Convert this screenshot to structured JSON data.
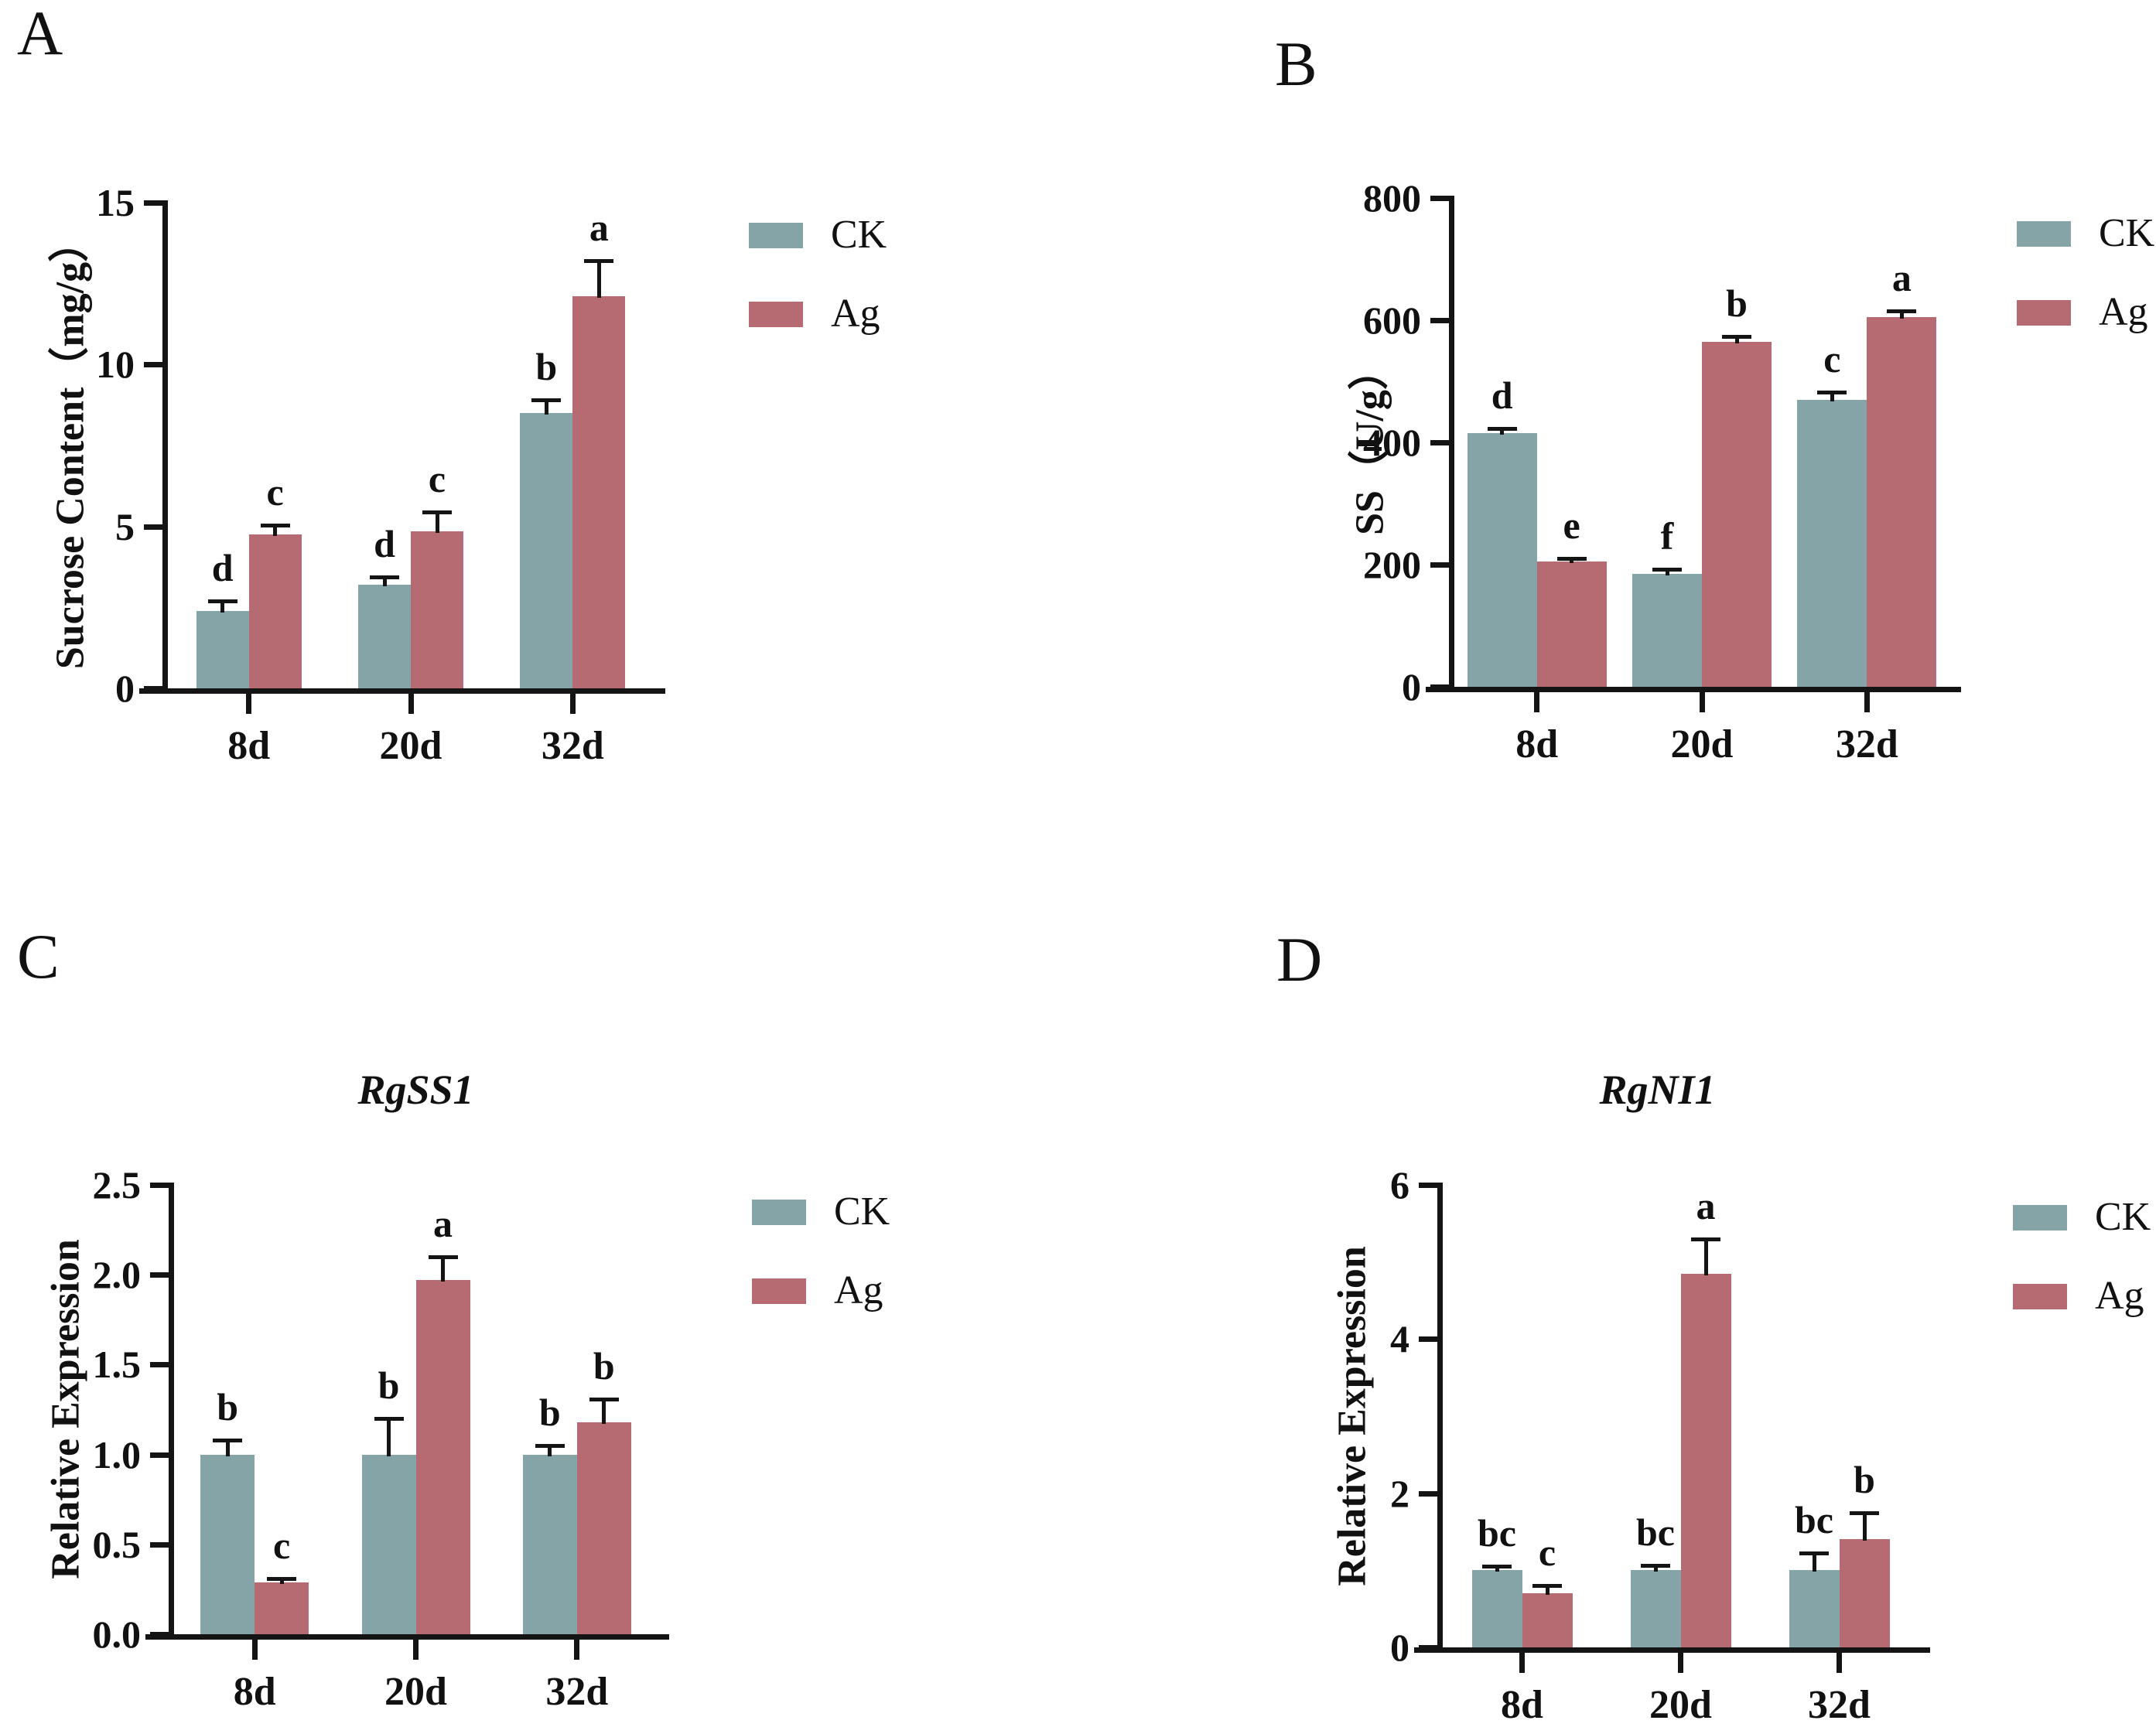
{
  "colors": {
    "ck": "#85A4A8",
    "ag": "#B66B72",
    "axis": "#141414",
    "background": "#FFFFFF"
  },
  "chart_data": [
    {
      "panel_label": "A",
      "type": "bar",
      "title": "",
      "ylabel": "Sucrose Content（mg/g）",
      "xlabel": "",
      "categories": [
        "8d",
        "20d",
        "32d"
      ],
      "ylim": [
        0,
        15
      ],
      "yticks": [
        0,
        5,
        10,
        15
      ],
      "ytick_labels": [
        "0",
        "5",
        "10",
        "15"
      ],
      "grid": false,
      "legend_position": "right-of-plot",
      "series": [
        {
          "name": "CK",
          "color_key": "ck",
          "values": [
            2.4,
            3.2,
            8.5
          ],
          "errors": [
            0.3,
            0.25,
            0.4
          ],
          "letters": [
            "d",
            "d",
            "b"
          ]
        },
        {
          "name": "Ag",
          "color_key": "ag",
          "values": [
            4.75,
            4.85,
            12.1
          ],
          "errors": [
            0.3,
            0.6,
            1.1
          ],
          "letters": [
            "c",
            "c",
            "a"
          ]
        }
      ]
    },
    {
      "panel_label": "B",
      "type": "bar",
      "title": "",
      "ylabel": "SS（U/g）",
      "xlabel": "",
      "categories": [
        "8d",
        "20d",
        "32d"
      ],
      "ylim": [
        0,
        800
      ],
      "yticks": [
        0,
        200,
        400,
        600,
        800
      ],
      "ytick_labels": [
        "0",
        "200",
        "400",
        "600",
        "800"
      ],
      "grid": false,
      "legend_position": "right-of-plot",
      "series": [
        {
          "name": "CK",
          "color_key": "ck",
          "values": [
            415,
            185,
            470
          ],
          "errors": [
            8,
            8,
            12
          ],
          "letters": [
            "d",
            "f",
            "c"
          ]
        },
        {
          "name": "Ag",
          "color_key": "ag",
          "values": [
            205,
            565,
            605
          ],
          "errors": [
            5,
            8,
            10
          ],
          "letters": [
            "e",
            "b",
            "a"
          ]
        }
      ]
    },
    {
      "panel_label": "C",
      "type": "bar",
      "title": "RgSS1",
      "ylabel": "Relative Expression",
      "xlabel": "",
      "categories": [
        "8d",
        "20d",
        "32d"
      ],
      "ylim": [
        0,
        2.5
      ],
      "yticks": [
        0,
        0.5,
        1.0,
        1.5,
        2.0,
        2.5
      ],
      "ytick_labels": [
        "0.0",
        "0.5",
        "1.0",
        "1.5",
        "2.0",
        "2.5"
      ],
      "grid": false,
      "legend_position": "right-of-plot",
      "series": [
        {
          "name": "CK",
          "color_key": "ck",
          "values": [
            1.0,
            1.0,
            1.0
          ],
          "errors": [
            0.08,
            0.2,
            0.05
          ],
          "letters": [
            "b",
            "b",
            "b"
          ]
        },
        {
          "name": "Ag",
          "color_key": "ag",
          "values": [
            0.29,
            1.97,
            1.18
          ],
          "errors": [
            0.02,
            0.13,
            0.13
          ],
          "letters": [
            "c",
            "a",
            "b"
          ]
        }
      ]
    },
    {
      "panel_label": "D",
      "type": "bar",
      "title": "RgNI1",
      "ylabel": "Relative Expression",
      "xlabel": "",
      "categories": [
        "8d",
        "20d",
        "32d"
      ],
      "ylim": [
        0,
        6
      ],
      "yticks": [
        0,
        2,
        4,
        6
      ],
      "ytick_labels": [
        "0",
        "2",
        "4",
        "6"
      ],
      "grid": false,
      "legend_position": "right-of-plot",
      "series": [
        {
          "name": "CK",
          "color_key": "ck",
          "values": [
            1.0,
            1.0,
            1.0
          ],
          "errors": [
            0.05,
            0.06,
            0.22
          ],
          "letters": [
            "bc",
            "bc",
            "bc"
          ]
        },
        {
          "name": "Ag",
          "color_key": "ag",
          "values": [
            0.7,
            4.85,
            1.4
          ],
          "errors": [
            0.1,
            0.45,
            0.35
          ],
          "letters": [
            "c",
            "a",
            "b"
          ]
        }
      ]
    }
  ]
}
